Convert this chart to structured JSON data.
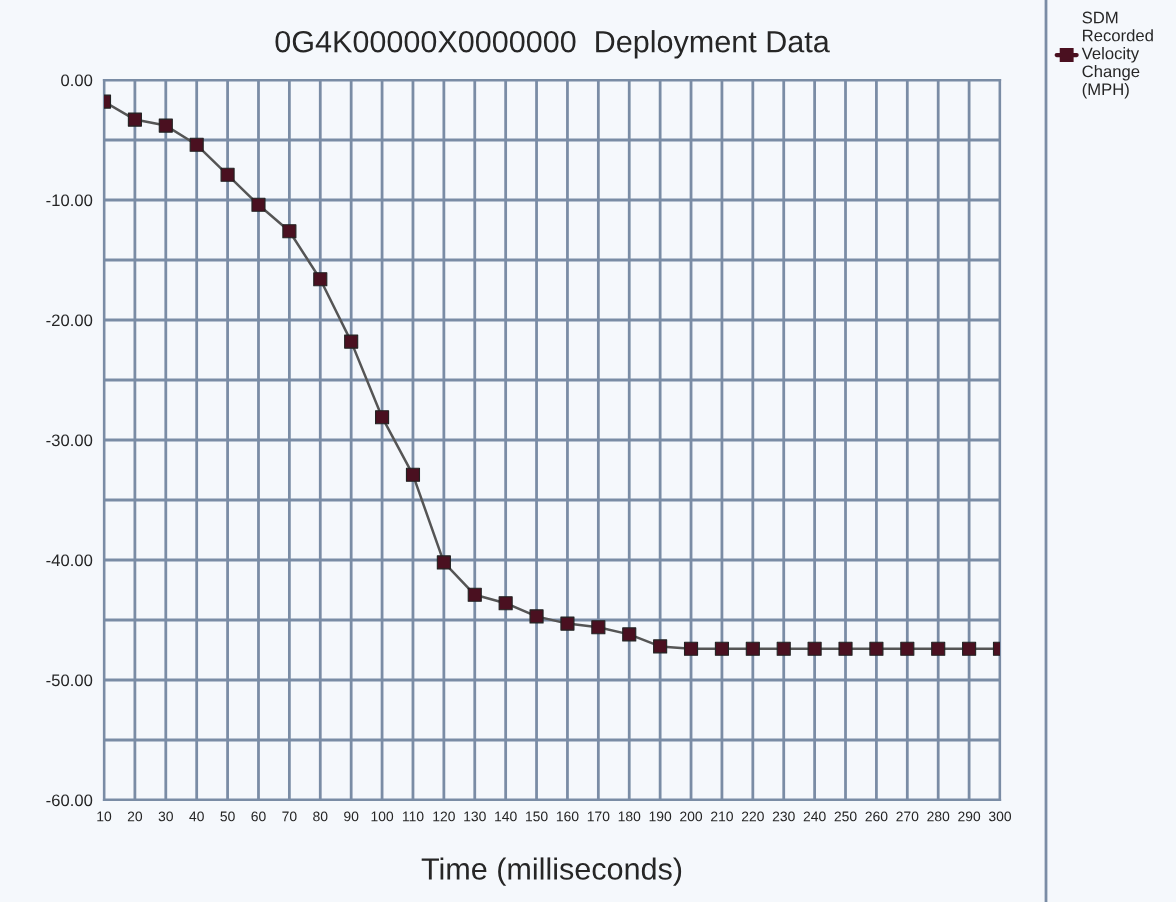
{
  "chart_data": {
    "type": "line",
    "title": "0G4K00000X0000000  Deployment Data",
    "xlabel": "Time (milliseconds)",
    "categories": [
      "10",
      "20",
      "30",
      "40",
      "50",
      "60",
      "70",
      "80",
      "90",
      "100",
      "110",
      "120",
      "130",
      "140",
      "150",
      "160",
      "170",
      "180",
      "190",
      "200",
      "210",
      "220",
      "230",
      "240",
      "250",
      "260",
      "270",
      "280",
      "290",
      "300"
    ],
    "series": [
      {
        "name": "SDM\nRecorded\nVelocity\nChange\n(MPH)",
        "color": "#4a1020",
        "values": [
          -1.8,
          -3.3,
          -3.8,
          -5.4,
          -7.9,
          -10.4,
          -12.6,
          -16.6,
          -21.8,
          -28.1,
          -32.9,
          -40.2,
          -42.9,
          -43.6,
          -44.7,
          -45.3,
          -45.6,
          -46.2,
          -47.2,
          -47.4,
          -47.4,
          -47.4,
          -47.4,
          -47.4,
          -47.4,
          -47.4,
          -47.4,
          -47.4,
          -47.4,
          -47.4
        ]
      }
    ],
    "ylim": [
      -60,
      0
    ],
    "yticks": [
      {
        "value": -60,
        "label": "-60.00"
      },
      {
        "value": -55,
        "label": null
      },
      {
        "value": -50,
        "label": "-50.00"
      },
      {
        "value": -45,
        "label": null
      },
      {
        "value": -40,
        "label": "-40.00"
      },
      {
        "value": -35,
        "label": null
      },
      {
        "value": -30,
        "label": "-30.00"
      },
      {
        "value": -25,
        "label": null
      },
      {
        "value": -20,
        "label": "-20.00"
      },
      {
        "value": -15,
        "label": null
      },
      {
        "value": -10,
        "label": "-10.00"
      },
      {
        "value": -5,
        "label": null
      },
      {
        "value": 0,
        "label": "0.00"
      }
    ],
    "grid": true,
    "legend": "right",
    "marker": "square",
    "line_style": "solid"
  }
}
